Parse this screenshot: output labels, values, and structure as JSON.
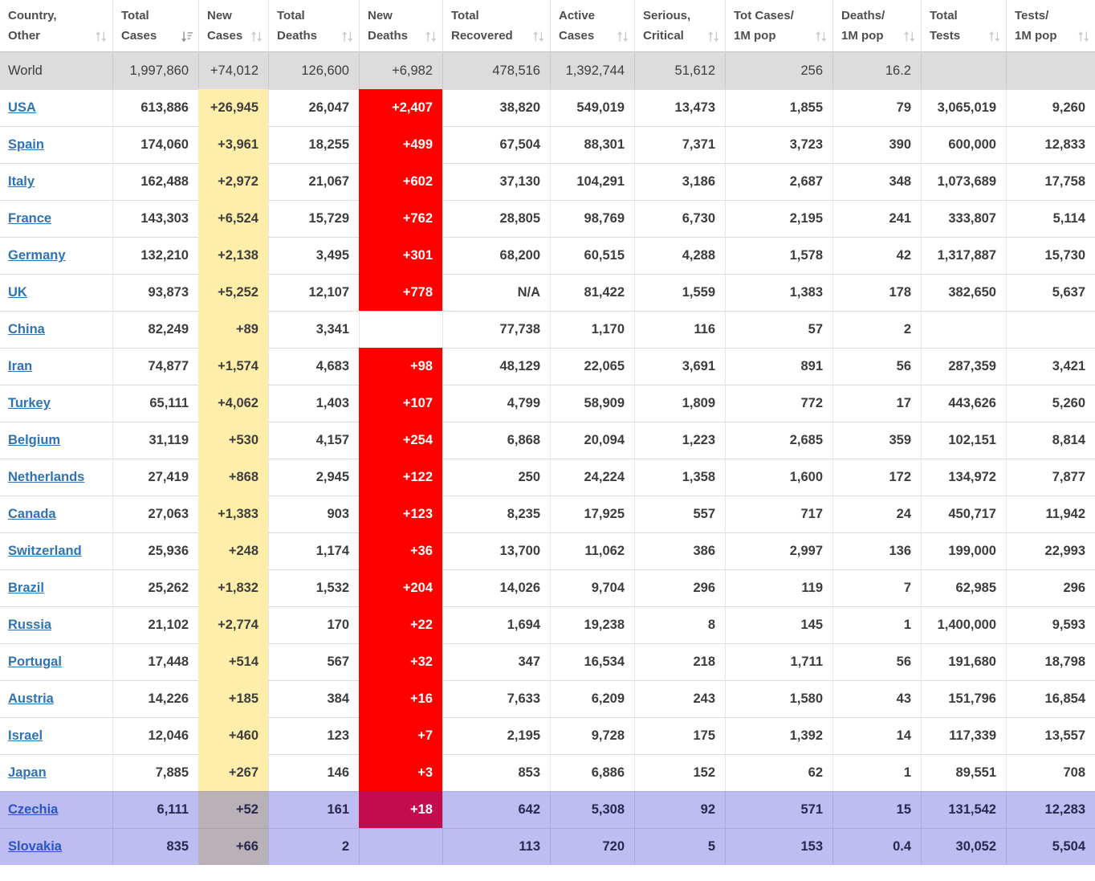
{
  "table": {
    "columns": [
      {
        "id": "country",
        "label_line1": "Country,",
        "label_line2": "Other",
        "sort": "unsorted"
      },
      {
        "id": "total_cases",
        "label_line1": "Total",
        "label_line2": "Cases",
        "sort": "desc"
      },
      {
        "id": "new_cases",
        "label_line1": "New",
        "label_line2": "Cases",
        "sort": "unsorted"
      },
      {
        "id": "total_deaths",
        "label_line1": "Total",
        "label_line2": "Deaths",
        "sort": "unsorted"
      },
      {
        "id": "new_deaths",
        "label_line1": "New",
        "label_line2": "Deaths",
        "sort": "unsorted"
      },
      {
        "id": "total_recovered",
        "label_line1": "Total",
        "label_line2": "Recovered",
        "sort": "unsorted"
      },
      {
        "id": "active_cases",
        "label_line1": "Active",
        "label_line2": "Cases",
        "sort": "unsorted"
      },
      {
        "id": "serious_critical",
        "label_line1": "Serious,",
        "label_line2": "Critical",
        "sort": "unsorted"
      },
      {
        "id": "cases_per_1m",
        "label_line1": "Tot Cases/",
        "label_line2": "1M pop",
        "sort": "unsorted"
      },
      {
        "id": "deaths_per_1m",
        "label_line1": "Deaths/",
        "label_line2": "1M pop",
        "sort": "unsorted"
      },
      {
        "id": "total_tests",
        "label_line1": "Total",
        "label_line2": "Tests",
        "sort": "unsorted"
      },
      {
        "id": "tests_per_1m",
        "label_line1": "Tests/",
        "label_line2": "1M pop",
        "sort": "unsorted"
      }
    ],
    "world_row": {
      "country": "World",
      "total_cases": "1,997,860",
      "new_cases": "+74,012",
      "total_deaths": "126,600",
      "new_deaths": "+6,982",
      "total_recovered": "478,516",
      "active_cases": "1,392,744",
      "serious_critical": "51,612",
      "cases_per_1m": "256",
      "deaths_per_1m": "16.2",
      "total_tests": "",
      "tests_per_1m": ""
    },
    "rows": [
      {
        "country": "USA",
        "total_cases": "613,886",
        "new_cases": "+26,945",
        "total_deaths": "26,047",
        "new_deaths": "+2,407",
        "total_recovered": "38,820",
        "active_cases": "549,019",
        "serious_critical": "13,473",
        "cases_per_1m": "1,855",
        "deaths_per_1m": "79",
        "total_tests": "3,065,019",
        "tests_per_1m": "9,260",
        "highlight": false
      },
      {
        "country": "Spain",
        "total_cases": "174,060",
        "new_cases": "+3,961",
        "total_deaths": "18,255",
        "new_deaths": "+499",
        "total_recovered": "67,504",
        "active_cases": "88,301",
        "serious_critical": "7,371",
        "cases_per_1m": "3,723",
        "deaths_per_1m": "390",
        "total_tests": "600,000",
        "tests_per_1m": "12,833",
        "highlight": false
      },
      {
        "country": "Italy",
        "total_cases": "162,488",
        "new_cases": "+2,972",
        "total_deaths": "21,067",
        "new_deaths": "+602",
        "total_recovered": "37,130",
        "active_cases": "104,291",
        "serious_critical": "3,186",
        "cases_per_1m": "2,687",
        "deaths_per_1m": "348",
        "total_tests": "1,073,689",
        "tests_per_1m": "17,758",
        "highlight": false
      },
      {
        "country": "France",
        "total_cases": "143,303",
        "new_cases": "+6,524",
        "total_deaths": "15,729",
        "new_deaths": "+762",
        "total_recovered": "28,805",
        "active_cases": "98,769",
        "serious_critical": "6,730",
        "cases_per_1m": "2,195",
        "deaths_per_1m": "241",
        "total_tests": "333,807",
        "tests_per_1m": "5,114",
        "highlight": false
      },
      {
        "country": "Germany",
        "total_cases": "132,210",
        "new_cases": "+2,138",
        "total_deaths": "3,495",
        "new_deaths": "+301",
        "total_recovered": "68,200",
        "active_cases": "60,515",
        "serious_critical": "4,288",
        "cases_per_1m": "1,578",
        "deaths_per_1m": "42",
        "total_tests": "1,317,887",
        "tests_per_1m": "15,730",
        "highlight": false
      },
      {
        "country": "UK",
        "total_cases": "93,873",
        "new_cases": "+5,252",
        "total_deaths": "12,107",
        "new_deaths": "+778",
        "total_recovered": "N/A",
        "active_cases": "81,422",
        "serious_critical": "1,559",
        "cases_per_1m": "1,383",
        "deaths_per_1m": "178",
        "total_tests": "382,650",
        "tests_per_1m": "5,637",
        "highlight": false
      },
      {
        "country": "China",
        "total_cases": "82,249",
        "new_cases": "+89",
        "total_deaths": "3,341",
        "new_deaths": "",
        "total_recovered": "77,738",
        "active_cases": "1,170",
        "serious_critical": "116",
        "cases_per_1m": "57",
        "deaths_per_1m": "2",
        "total_tests": "",
        "tests_per_1m": "",
        "highlight": false
      },
      {
        "country": "Iran",
        "total_cases": "74,877",
        "new_cases": "+1,574",
        "total_deaths": "4,683",
        "new_deaths": "+98",
        "total_recovered": "48,129",
        "active_cases": "22,065",
        "serious_critical": "3,691",
        "cases_per_1m": "891",
        "deaths_per_1m": "56",
        "total_tests": "287,359",
        "tests_per_1m": "3,421",
        "highlight": false
      },
      {
        "country": "Turkey",
        "total_cases": "65,111",
        "new_cases": "+4,062",
        "total_deaths": "1,403",
        "new_deaths": "+107",
        "total_recovered": "4,799",
        "active_cases": "58,909",
        "serious_critical": "1,809",
        "cases_per_1m": "772",
        "deaths_per_1m": "17",
        "total_tests": "443,626",
        "tests_per_1m": "5,260",
        "highlight": false
      },
      {
        "country": "Belgium",
        "total_cases": "31,119",
        "new_cases": "+530",
        "total_deaths": "4,157",
        "new_deaths": "+254",
        "total_recovered": "6,868",
        "active_cases": "20,094",
        "serious_critical": "1,223",
        "cases_per_1m": "2,685",
        "deaths_per_1m": "359",
        "total_tests": "102,151",
        "tests_per_1m": "8,814",
        "highlight": false
      },
      {
        "country": "Netherlands",
        "total_cases": "27,419",
        "new_cases": "+868",
        "total_deaths": "2,945",
        "new_deaths": "+122",
        "total_recovered": "250",
        "active_cases": "24,224",
        "serious_critical": "1,358",
        "cases_per_1m": "1,600",
        "deaths_per_1m": "172",
        "total_tests": "134,972",
        "tests_per_1m": "7,877",
        "highlight": false
      },
      {
        "country": "Canada",
        "total_cases": "27,063",
        "new_cases": "+1,383",
        "total_deaths": "903",
        "new_deaths": "+123",
        "total_recovered": "8,235",
        "active_cases": "17,925",
        "serious_critical": "557",
        "cases_per_1m": "717",
        "deaths_per_1m": "24",
        "total_tests": "450,717",
        "tests_per_1m": "11,942",
        "highlight": false
      },
      {
        "country": "Switzerland",
        "total_cases": "25,936",
        "new_cases": "+248",
        "total_deaths": "1,174",
        "new_deaths": "+36",
        "total_recovered": "13,700",
        "active_cases": "11,062",
        "serious_critical": "386",
        "cases_per_1m": "2,997",
        "deaths_per_1m": "136",
        "total_tests": "199,000",
        "tests_per_1m": "22,993",
        "highlight": false
      },
      {
        "country": "Brazil",
        "total_cases": "25,262",
        "new_cases": "+1,832",
        "total_deaths": "1,532",
        "new_deaths": "+204",
        "total_recovered": "14,026",
        "active_cases": "9,704",
        "serious_critical": "296",
        "cases_per_1m": "119",
        "deaths_per_1m": "7",
        "total_tests": "62,985",
        "tests_per_1m": "296",
        "highlight": false
      },
      {
        "country": "Russia",
        "total_cases": "21,102",
        "new_cases": "+2,774",
        "total_deaths": "170",
        "new_deaths": "+22",
        "total_recovered": "1,694",
        "active_cases": "19,238",
        "serious_critical": "8",
        "cases_per_1m": "145",
        "deaths_per_1m": "1",
        "total_tests": "1,400,000",
        "tests_per_1m": "9,593",
        "highlight": false
      },
      {
        "country": "Portugal",
        "total_cases": "17,448",
        "new_cases": "+514",
        "total_deaths": "567",
        "new_deaths": "+32",
        "total_recovered": "347",
        "active_cases": "16,534",
        "serious_critical": "218",
        "cases_per_1m": "1,711",
        "deaths_per_1m": "56",
        "total_tests": "191,680",
        "tests_per_1m": "18,798",
        "highlight": false
      },
      {
        "country": "Austria",
        "total_cases": "14,226",
        "new_cases": "+185",
        "total_deaths": "384",
        "new_deaths": "+16",
        "total_recovered": "7,633",
        "active_cases": "6,209",
        "serious_critical": "243",
        "cases_per_1m": "1,580",
        "deaths_per_1m": "43",
        "total_tests": "151,796",
        "tests_per_1m": "16,854",
        "highlight": false
      },
      {
        "country": "Israel",
        "total_cases": "12,046",
        "new_cases": "+460",
        "total_deaths": "123",
        "new_deaths": "+7",
        "total_recovered": "2,195",
        "active_cases": "9,728",
        "serious_critical": "175",
        "cases_per_1m": "1,392",
        "deaths_per_1m": "14",
        "total_tests": "117,339",
        "tests_per_1m": "13,557",
        "highlight": false
      },
      {
        "country": "Japan",
        "total_cases": "7,885",
        "new_cases": "+267",
        "total_deaths": "146",
        "new_deaths": "+3",
        "total_recovered": "853",
        "active_cases": "6,886",
        "serious_critical": "152",
        "cases_per_1m": "62",
        "deaths_per_1m": "1",
        "total_tests": "89,551",
        "tests_per_1m": "708",
        "highlight": false
      },
      {
        "country": "Czechia",
        "total_cases": "6,111",
        "new_cases": "+52",
        "total_deaths": "161",
        "new_deaths": "+18",
        "total_recovered": "642",
        "active_cases": "5,308",
        "serious_critical": "92",
        "cases_per_1m": "571",
        "deaths_per_1m": "15",
        "total_tests": "131,542",
        "tests_per_1m": "12,283",
        "highlight": true
      },
      {
        "country": "Slovakia",
        "total_cases": "835",
        "new_cases": "+66",
        "total_deaths": "2",
        "new_deaths": "",
        "total_recovered": "113",
        "active_cases": "720",
        "serious_critical": "5",
        "cases_per_1m": "153",
        "deaths_per_1m": "0.4",
        "total_tests": "30,052",
        "tests_per_1m": "5,504",
        "highlight": true
      }
    ]
  },
  "colors": {
    "new_cases_bg": "#FFEEAA",
    "new_deaths_bg": "#FF0000",
    "world_row_bg": "#DCDCDC",
    "highlight_row_bg": "#BDBDF1",
    "highlight_new_cases_bg": "#B8B1B7",
    "highlight_new_deaths_bg": "#C30B4E",
    "link_color": "#2E73B5"
  }
}
